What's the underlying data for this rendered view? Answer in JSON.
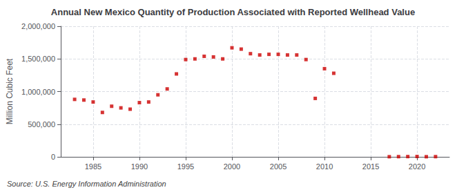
{
  "chart_data": {
    "type": "scatter",
    "title": "Annual New Mexico Quantity of Production Associated with Reported Wellhead Value",
    "ylabel": "Million Cubic Feet",
    "annotations": [
      "Source: U.S. Energy Information Administration"
    ],
    "x": [
      1983,
      1984,
      1985,
      1986,
      1987,
      1988,
      1989,
      1990,
      1991,
      1992,
      1993,
      1994,
      1995,
      1996,
      1997,
      1998,
      1999,
      2000,
      2001,
      2002,
      2003,
      2004,
      2005,
      2006,
      2007,
      2008,
      2009,
      2010,
      2011,
      2017,
      2018,
      2019,
      2020,
      2021,
      2022
    ],
    "values": [
      880000,
      870000,
      840000,
      680000,
      775000,
      750000,
      730000,
      830000,
      840000,
      950000,
      1040000,
      1270000,
      1490000,
      1500000,
      1540000,
      1530000,
      1500000,
      1670000,
      1650000,
      1580000,
      1560000,
      1570000,
      1570000,
      1560000,
      1560000,
      1490000,
      895000,
      1350000,
      1280000,
      2000,
      3000,
      4000,
      5000,
      2000,
      3000
    ],
    "color": "#cc0000",
    "marker": "square",
    "xlim": [
      1981.5,
      2023.5
    ],
    "xticks": [
      1985,
      1990,
      1995,
      2000,
      2005,
      2010,
      2015,
      2020
    ],
    "ylim": [
      0,
      2000000
    ],
    "yticks": [
      {
        "value": 0,
        "label": "0"
      },
      {
        "value": 500000,
        "label": "500,000"
      },
      {
        "value": 1000000,
        "label": "1,000,000"
      },
      {
        "value": 1500000,
        "label": "1,500,000"
      },
      {
        "value": 2000000,
        "label": "2,000,000"
      }
    ],
    "grid": true
  }
}
